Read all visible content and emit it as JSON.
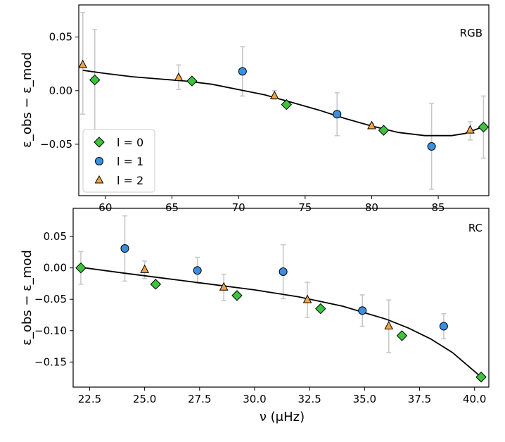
{
  "figure": {
    "xlabel_main": "ν (μHz)",
    "ylabel": "ε_obs − ε_mod"
  },
  "legend": {
    "entries": [
      {
        "label": "l = 0",
        "marker": "diamond",
        "color": "#3cc43c"
      },
      {
        "label": "l = 1",
        "marker": "circle",
        "color": "#3a8fe0"
      },
      {
        "label": "l = 2",
        "marker": "triangle",
        "color": "#f5a442"
      }
    ]
  },
  "chart_data": [
    {
      "type": "scatter",
      "panel_tag": "RGB",
      "xlabel": "",
      "ylabel": "ε_obs − ε_mod",
      "xlim": [
        58,
        88.8
      ],
      "ylim": [
        -0.098,
        0.08
      ],
      "xticks": [
        60,
        65,
        70,
        75,
        80,
        85
      ],
      "xtick_labels": [
        "60",
        "65",
        "70",
        "75",
        "80",
        "85"
      ],
      "yticks": [
        -0.05,
        0.0,
        0.05
      ],
      "ytick_labels": [
        "−0.05",
        "0.00",
        "0.05"
      ],
      "legend_position": "lower-left",
      "series": [
        {
          "name": "l = 0",
          "marker": "diamond",
          "color": "#3cc43c",
          "x": [
            59.2,
            66.5,
            73.6,
            80.9,
            88.4
          ],
          "y": [
            0.01,
            0.009,
            -0.013,
            -0.037,
            -0.034
          ],
          "err": [
            0,
            0,
            0,
            0,
            0.029
          ]
        },
        {
          "name": "l = 1",
          "marker": "circle",
          "color": "#3a8fe0",
          "x": [
            70.3,
            77.4,
            84.5
          ],
          "y": [
            0.018,
            -0.022,
            -0.052
          ],
          "err": [
            0.023,
            0.02,
            0.04
          ]
        },
        {
          "name": "l = 2",
          "marker": "triangle",
          "color": "#f5a442",
          "x": [
            58.3,
            65.5,
            72.7,
            80.0,
            87.4
          ],
          "y": [
            0.024,
            0.012,
            -0.005,
            -0.033,
            -0.037
          ],
          "err": [
            0.048,
            0.011,
            0.003,
            0.002,
            0.008
          ],
          "err_top": [
            0.073,
            0.024,
            0.0,
            -0.031,
            -0.029
          ],
          "err_bottom": [
            -0.022,
            0.001,
            -0.008,
            -0.035,
            -0.046
          ]
        },
        {
          "name": "",
          "marker": "none",
          "color": "#e8e8e8",
          "x": [
            59.2
          ],
          "err_top": [
            0.057
          ],
          "err_bottom": [
            -0.047
          ]
        }
      ],
      "fit_curve": {
        "x": [
          58.3,
          60,
          62,
          64,
          66,
          68,
          70,
          72,
          74,
          76,
          78,
          80,
          82,
          84,
          86,
          87,
          88.3
        ],
        "y": [
          0.019,
          0.016,
          0.013,
          0.011,
          0.009,
          0.006,
          0.001,
          -0.004,
          -0.011,
          -0.018,
          -0.026,
          -0.033,
          -0.039,
          -0.042,
          -0.042,
          -0.04,
          -0.034
        ]
      }
    },
    {
      "type": "scatter",
      "panel_tag": "RC",
      "xlabel": "ν (μHz)",
      "ylabel": "ε_obs − ε_mod",
      "xlim": [
        21.75,
        40.65
      ],
      "ylim": [
        -0.19,
        0.095
      ],
      "xticks": [
        22.5,
        25.0,
        27.5,
        30.0,
        32.5,
        35.0,
        37.5,
        40.0
      ],
      "xtick_labels": [
        "22.5",
        "25.0",
        "27.5",
        "30.0",
        "32.5",
        "35.0",
        "37.5",
        "40.0"
      ],
      "yticks": [
        -0.15,
        -0.1,
        -0.05,
        0.0,
        0.05
      ],
      "ytick_labels": [
        "−0.15",
        "−0.10",
        "−0.05",
        "0.00",
        "0.05"
      ],
      "series": [
        {
          "name": "l = 0",
          "marker": "diamond",
          "color": "#3cc43c",
          "x": [
            22.1,
            25.5,
            29.2,
            33.0,
            36.7,
            40.3
          ],
          "y": [
            0.0,
            -0.026,
            -0.044,
            -0.065,
            -0.108,
            -0.174
          ],
          "err": [
            0.026,
            0,
            0,
            0,
            0,
            0
          ]
        },
        {
          "name": "l = 1",
          "marker": "circle",
          "color": "#3a8fe0",
          "x": [
            24.1,
            27.4,
            31.3,
            34.9,
            38.6
          ],
          "y": [
            0.031,
            -0.004,
            -0.006,
            -0.068,
            -0.093
          ],
          "err": [
            0.052,
            0.021,
            0.043,
            0.025,
            0.02
          ]
        },
        {
          "name": "l = 2",
          "marker": "triangle",
          "color": "#f5a442",
          "x": [
            25.0,
            28.6,
            32.4,
            36.1
          ],
          "y": [
            -0.003,
            -0.031,
            -0.051,
            -0.093
          ],
          "err": [
            0.014,
            0.021,
            0.028,
            0.042
          ]
        }
      ],
      "fit_curve": {
        "x": [
          22.1,
          24,
          26,
          28,
          30,
          32,
          34,
          36,
          37,
          38,
          39,
          40.3
        ],
        "y": [
          0.001,
          -0.008,
          -0.017,
          -0.026,
          -0.035,
          -0.046,
          -0.061,
          -0.082,
          -0.096,
          -0.113,
          -0.135,
          -0.174
        ]
      }
    }
  ]
}
